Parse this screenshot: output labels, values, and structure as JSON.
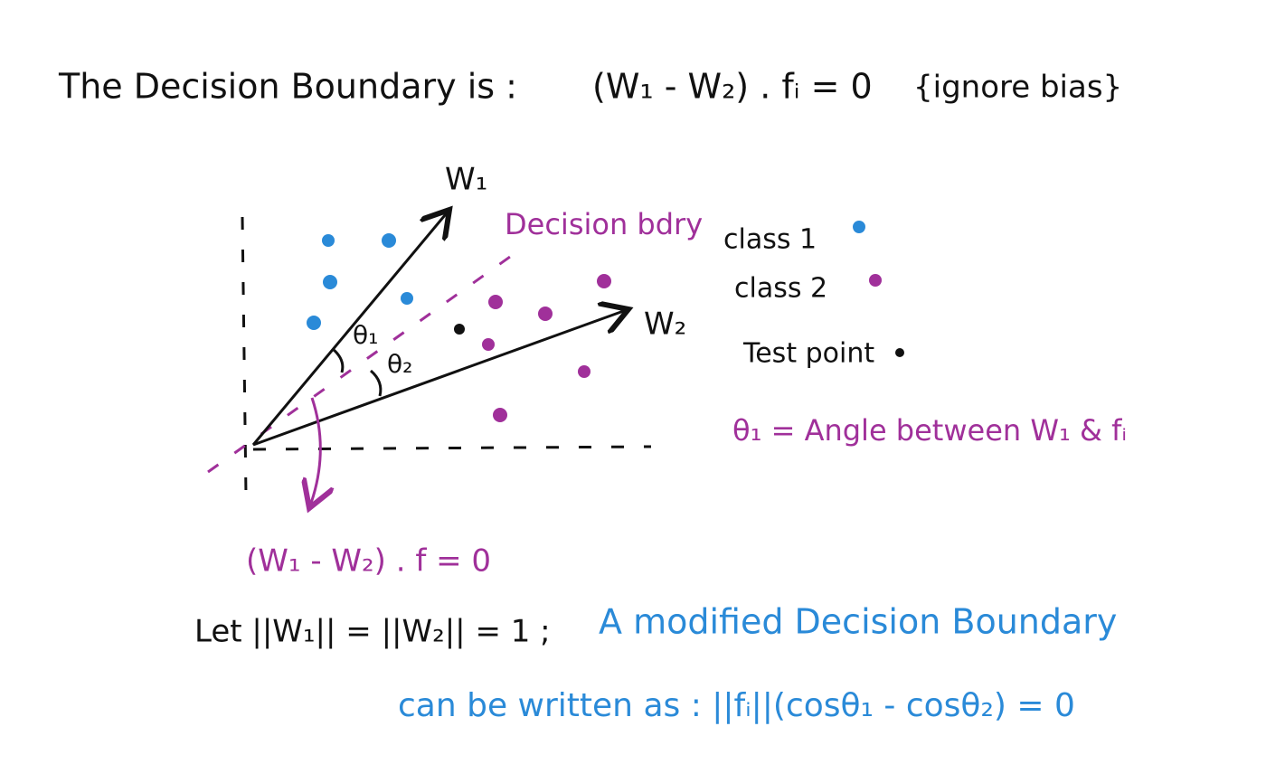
{
  "header": {
    "title": "The Decision Boundary is :",
    "equation": "(W₁ - W₂) . fᵢ = 0",
    "note": "{ignore bias}"
  },
  "diagram": {
    "w1_label": "W₁",
    "w2_label": "W₂",
    "boundary_label": "Decision bdry",
    "theta1": "θ₁",
    "theta2": "θ₂",
    "boundary_equation": "(W₁ - W₂) . f = 0"
  },
  "legend": {
    "items": [
      "class 1",
      "class 2",
      "Test point"
    ]
  },
  "definition": "θ₁ = Angle between W₁ & fᵢ",
  "footer": {
    "assumption": "Let ||W₁|| = ||W₂|| = 1 ;",
    "statement_1": "A modified Decision Boundary",
    "statement_2": "can be written as : ||fᵢ||(cosθ₁ - cosθ₂) = 0"
  }
}
